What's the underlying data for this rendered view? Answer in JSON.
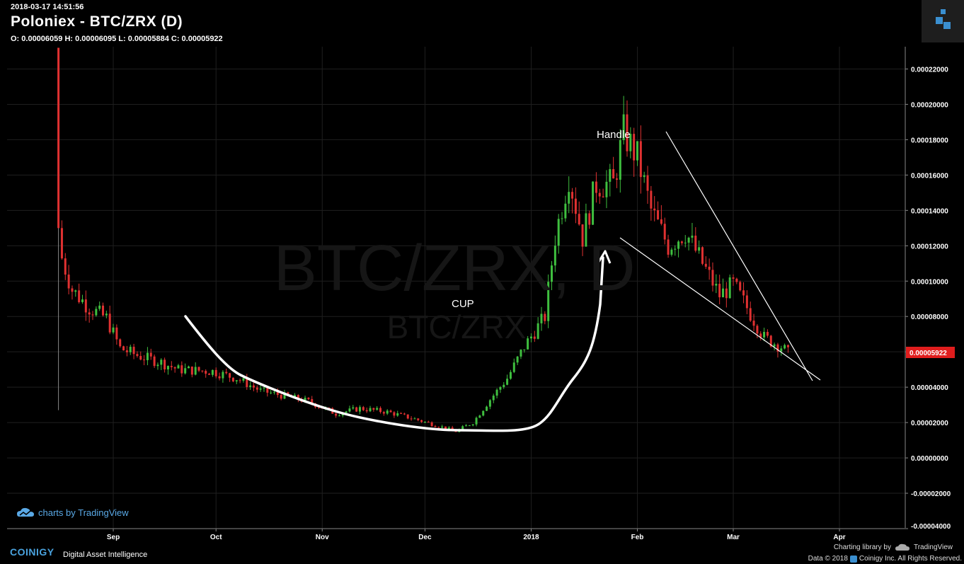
{
  "header": {
    "timestamp": "2018-03-17 14:51:56",
    "title": "Poloniex - BTC/ZRX (D)",
    "ohlc": "O: 0.00006059 H: 0.00006095 L: 0.00005884 C: 0.00005922"
  },
  "watermark": {
    "main": "BTC/ZRX, D",
    "sub": "BTC/ZRX"
  },
  "annotations": {
    "cup": "CUP",
    "handle": "Handle"
  },
  "footer": {
    "tv_badge": "charts by TradingView",
    "brand": "COINIGY",
    "tagline": "Digital Asset Intelligence",
    "charting_lib": "Charting library by",
    "tv_name": "TradingView",
    "copyright": "Data © 2018",
    "copyright2": "Coinigy Inc. All Rights Reserved."
  },
  "colors": {
    "up": "#3fbf3f",
    "down": "#e03131",
    "grid": "#1f1f1f",
    "price_tag": "#e01d1d",
    "annotation": "#ffffff"
  },
  "chart_data": {
    "type": "candlestick",
    "last_price": "0.00005922",
    "x_ticks": [
      "Sep",
      "Oct",
      "Nov",
      "Dec",
      "2018",
      "Feb",
      "Mar",
      "Apr"
    ],
    "y_ticks": [
      "0.00022000",
      "0.00020000",
      "0.00018000",
      "0.00016000",
      "0.00014000",
      "0.00012000",
      "0.00010000",
      "0.00008000",
      "0.00006000",
      "0.00004000",
      "0.00002000",
      "0.00000000",
      "-0.00002000",
      "-0.00004000"
    ],
    "series_close": [
      [
        "2017-08-16",
        0.00013
      ],
      [
        "2017-08-17",
        0.000113
      ],
      [
        "2017-08-20",
        9.5e-05
      ],
      [
        "2017-08-25",
        8.5e-05
      ],
      [
        "2017-08-30",
        7.9e-05
      ],
      [
        "2017-09-03",
        6.2e-05
      ],
      [
        "2017-09-08",
        5.8e-05
      ],
      [
        "2017-09-15",
        5.4e-05
      ],
      [
        "2017-09-20",
        5e-05
      ],
      [
        "2017-09-30",
        4.9e-05
      ],
      [
        "2017-10-07",
        4.5e-05
      ],
      [
        "2017-10-14",
        3.8e-05
      ],
      [
        "2017-10-21",
        3.5e-05
      ],
      [
        "2017-10-28",
        3.2e-05
      ],
      [
        "2017-11-05",
        2.5e-05
      ],
      [
        "2017-11-12",
        2.8e-05
      ],
      [
        "2017-11-20",
        2.6e-05
      ],
      [
        "2017-11-28",
        2.2e-05
      ],
      [
        "2017-12-05",
        1.8e-05
      ],
      [
        "2017-12-10",
        1.5e-05
      ],
      [
        "2017-12-15",
        2e-05
      ],
      [
        "2017-12-20",
        3.3e-05
      ],
      [
        "2017-12-25",
        4.5e-05
      ],
      [
        "2017-12-30",
        6.3e-05
      ],
      [
        "2018-01-05",
        8e-05
      ],
      [
        "2018-01-08",
        0.000125
      ],
      [
        "2018-01-12",
        0.00016
      ],
      [
        "2018-01-16",
        0.000125
      ],
      [
        "2018-01-20",
        0.000155
      ],
      [
        "2018-01-25",
        0.000155
      ],
      [
        "2018-01-28",
        0.000184
      ],
      [
        "2018-02-01",
        0.00017
      ],
      [
        "2018-02-05",
        0.00014
      ],
      [
        "2018-02-10",
        0.00012
      ],
      [
        "2018-02-15",
        0.000128
      ],
      [
        "2018-02-20",
        0.00011
      ],
      [
        "2018-02-25",
        9.2e-05
      ],
      [
        "2018-03-01",
        9.8e-05
      ],
      [
        "2018-03-05",
        8.5e-05
      ],
      [
        "2018-03-10",
        6.8e-05
      ],
      [
        "2018-03-15",
        6.3e-05
      ],
      [
        "2018-03-17",
        5.922e-05
      ]
    ],
    "ylim": [
      -4e-05,
      0.000233
    ]
  }
}
